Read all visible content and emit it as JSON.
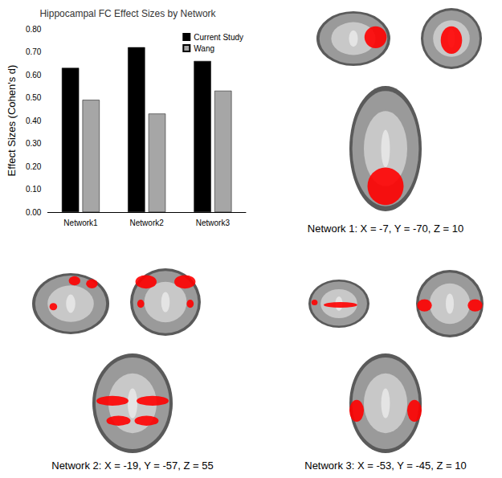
{
  "chart_data": {
    "type": "bar",
    "title": "Hippocampal FC Effect Sizes by Network",
    "y_label": "Effect Sizes (Cohen's d)",
    "categories": [
      "Network1",
      "Network2",
      "Network3"
    ],
    "series": [
      {
        "name": "Current Study",
        "color": "#000000",
        "values": [
          0.63,
          0.72,
          0.66
        ]
      },
      {
        "name": "Wang",
        "color": "#a6a6a6",
        "values": [
          0.49,
          0.43,
          0.53
        ]
      }
    ],
    "ylim": [
      0,
      0.8
    ],
    "yticks": [
      {
        "value": 0,
        "label": "0.00"
      },
      {
        "value": 0.1,
        "label": "0.10"
      },
      {
        "value": 0.2,
        "label": "0.20"
      },
      {
        "value": 0.3,
        "label": "0.30"
      },
      {
        "value": 0.4,
        "label": "0.40"
      },
      {
        "value": 0.5,
        "label": "0.50"
      },
      {
        "value": 0.6,
        "label": "0.60"
      },
      {
        "value": 0.7,
        "label": "0.70"
      },
      {
        "value": 0.8,
        "label": "0.80"
      }
    ],
    "grid": false,
    "legend": "top-right"
  },
  "panels": [
    {
      "caption": "Network 1:  X = -7, Y = -70, Z = 10"
    },
    {
      "caption": "Network 2: X = -19, Y = -57, Z = 55"
    },
    {
      "caption": "Network 3: X = -53, Y = -45, Z = 10"
    }
  ]
}
